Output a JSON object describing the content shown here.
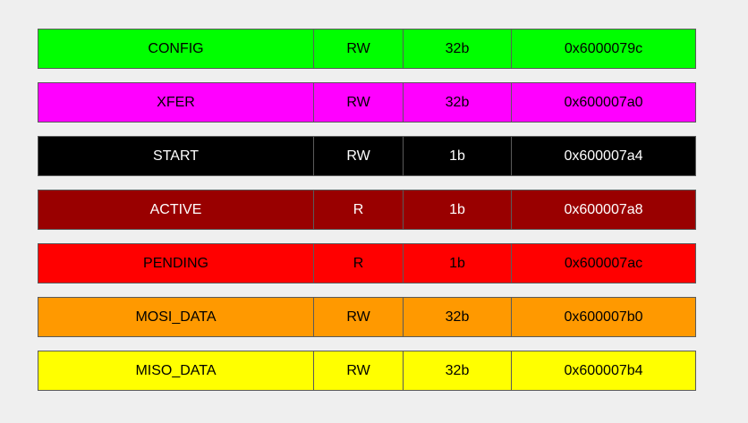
{
  "registers": [
    {
      "name": "CONFIG",
      "access": "RW",
      "width": "32b",
      "address": "0x6000079c",
      "color": "#00ff00",
      "text_color": "#000000"
    },
    {
      "name": "XFER",
      "access": "RW",
      "width": "32b",
      "address": "0x600007a0",
      "color": "#ff00ff",
      "text_color": "#000000"
    },
    {
      "name": "START",
      "access": "RW",
      "width": "1b",
      "address": "0x600007a4",
      "color": "#000000",
      "text_color": "#ffffff"
    },
    {
      "name": "ACTIVE",
      "access": "R",
      "width": "1b",
      "address": "0x600007a8",
      "color": "#990000",
      "text_color": "#ffffff"
    },
    {
      "name": "PENDING",
      "access": "R",
      "width": "1b",
      "address": "0x600007ac",
      "color": "#ff0000",
      "text_color": "#000000"
    },
    {
      "name": "MOSI_DATA",
      "access": "RW",
      "width": "32b",
      "address": "0x600007b0",
      "color": "#ff9900",
      "text_color": "#000000"
    },
    {
      "name": "MISO_DATA",
      "access": "RW",
      "width": "32b",
      "address": "0x600007b4",
      "color": "#ffff00",
      "text_color": "#000000"
    }
  ]
}
